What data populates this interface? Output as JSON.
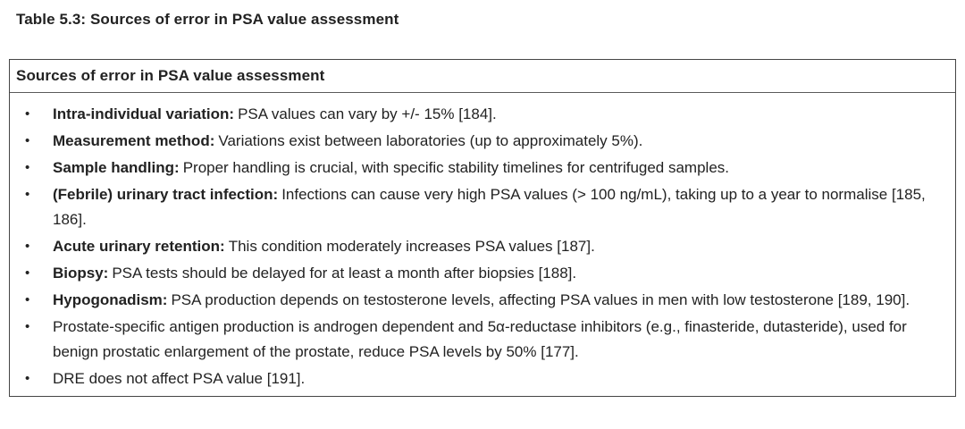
{
  "page": {
    "caption": "Table 5.3: Sources of error in PSA value assessment"
  },
  "table": {
    "header": "Sources of error in PSA value assessment",
    "bullet_glyph": "•",
    "items": [
      {
        "lead": "Intra-individual variation:",
        "text": "PSA values can vary by +/- 15% [184]."
      },
      {
        "lead": "Measurement method:",
        "text": "Variations exist between laboratories (up to approximately 5%)."
      },
      {
        "lead": "Sample handling:",
        "text": "Proper handling is crucial, with specific stability timelines for centrifuged samples."
      },
      {
        "lead": "(Febrile) urinary tract infection:",
        "text": "Infections can cause very high PSA values (> 100 ng/mL), taking up to a year to normalise [185, 186]."
      },
      {
        "lead": "Acute urinary retention:",
        "text": "This condition moderately increases PSA values [187]."
      },
      {
        "lead": "Biopsy:",
        "text": "PSA tests should be delayed for at least a month after biopsies [188]."
      },
      {
        "lead": "Hypogonadism:",
        "text": "PSA production depends on testosterone levels, affecting PSA values in men with low testosterone [189, 190]."
      },
      {
        "lead": "",
        "text": "Prostate-specific antigen production is androgen dependent and 5α-reductase inhibitors (e.g., finasteride, dutasteride), used for benign prostatic enlargement of the prostate, reduce PSA levels by 50% [177]."
      },
      {
        "lead": "",
        "text": "DRE does not affect PSA value [191]."
      }
    ]
  },
  "colors": {
    "text": "#222222",
    "border": "#454545",
    "background": "#ffffff"
  }
}
